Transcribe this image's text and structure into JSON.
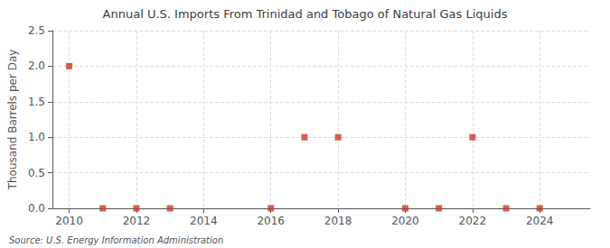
{
  "chart_data": {
    "type": "scatter",
    "title": "Annual U.S. Imports From Trinidad and Tobago of Natural Gas Liquids",
    "ylabel": "Thousand Barrels per Day",
    "annotations": [
      "Source: U.S. Energy Information Administration"
    ],
    "x": [
      2010,
      2011,
      2012,
      2013,
      2016,
      2017,
      2018,
      2020,
      2021,
      2022,
      2023,
      2024
    ],
    "values": [
      2.0,
      0.0,
      0.0,
      0.0,
      0.0,
      1.0,
      1.0,
      0.0,
      0.0,
      1.0,
      0.0,
      0.0
    ],
    "color": "#c0392b",
    "marker": "square",
    "xlim": [
      2009.5,
      2025.5
    ],
    "xticks": [
      2010,
      2012,
      2014,
      2016,
      2018,
      2020,
      2022,
      2024
    ],
    "ylim": [
      0.0,
      2.5
    ],
    "yticks": [
      {
        "value": 0.0,
        "label": "0.0"
      },
      0.5,
      {
        "value": 1.0,
        "label": "1.0"
      },
      1.5,
      {
        "value": 2.0,
        "label": "2.0"
      },
      2.5
    ],
    "grid": true
  }
}
